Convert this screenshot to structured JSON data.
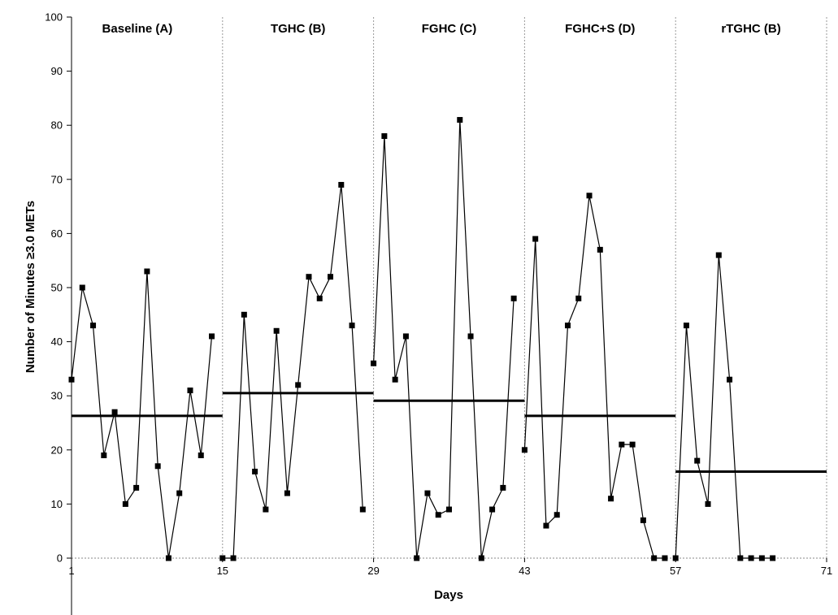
{
  "chart_data": {
    "type": "line",
    "xlabel": "Days",
    "ylabel": "Number of Minutes ≥3.0 METs",
    "xlim": [
      1,
      71
    ],
    "ylim": [
      0,
      100
    ],
    "x_ticks": [
      1,
      15,
      29,
      43,
      57,
      71
    ],
    "y_ticks": [
      0,
      10,
      20,
      30,
      40,
      50,
      60,
      70,
      80,
      90,
      100
    ],
    "phase_dividers": [
      15,
      29,
      43,
      57
    ],
    "phases": [
      {
        "label": "Baseline (A)",
        "x_range": [
          1,
          15
        ],
        "mean": 26.3,
        "points": [
          [
            1,
            33
          ],
          [
            2,
            50
          ],
          [
            3,
            43
          ],
          [
            4,
            19
          ],
          [
            5,
            27
          ],
          [
            6,
            10
          ],
          [
            7,
            13
          ],
          [
            8,
            53
          ],
          [
            9,
            17
          ],
          [
            10,
            0
          ],
          [
            11,
            12
          ],
          [
            12,
            31
          ],
          [
            13,
            19
          ],
          [
            14,
            41
          ]
        ]
      },
      {
        "label": "TGHC (B)",
        "x_range": [
          15,
          29
        ],
        "mean": 30.5,
        "points": [
          [
            15,
            0
          ],
          [
            16,
            0
          ],
          [
            17,
            45
          ],
          [
            18,
            16
          ],
          [
            19,
            9
          ],
          [
            20,
            42
          ],
          [
            21,
            12
          ],
          [
            22,
            32
          ],
          [
            23,
            52
          ],
          [
            24,
            48
          ],
          [
            25,
            52
          ],
          [
            26,
            69
          ],
          [
            27,
            43
          ],
          [
            28,
            9
          ]
        ]
      },
      {
        "label": "FGHC (C)",
        "x_range": [
          29,
          43
        ],
        "mean": 29.1,
        "points": [
          [
            29,
            36
          ],
          [
            30,
            78
          ],
          [
            31,
            33
          ],
          [
            32,
            41
          ],
          [
            33,
            0
          ],
          [
            34,
            12
          ],
          [
            35,
            8
          ],
          [
            36,
            9
          ],
          [
            37,
            81
          ],
          [
            38,
            41
          ],
          [
            39,
            0
          ],
          [
            40,
            9
          ],
          [
            41,
            13
          ],
          [
            42,
            48
          ]
        ]
      },
      {
        "label": "FGHC+S (D)",
        "x_range": [
          43,
          57
        ],
        "mean": 26.3,
        "points": [
          [
            43,
            20
          ],
          [
            44,
            59
          ],
          [
            45,
            6
          ],
          [
            46,
            8
          ],
          [
            47,
            43
          ],
          [
            48,
            48
          ],
          [
            49,
            67
          ],
          [
            50,
            57
          ],
          [
            51,
            11
          ],
          [
            52,
            21
          ],
          [
            53,
            21
          ],
          [
            54,
            7
          ],
          [
            55,
            0
          ],
          [
            56,
            0
          ]
        ]
      },
      {
        "label": "rTGHC (B)",
        "x_range": [
          57,
          71
        ],
        "mean": 16,
        "points": [
          [
            57,
            0
          ],
          [
            58,
            43
          ],
          [
            59,
            18
          ],
          [
            60,
            10
          ],
          [
            61,
            56
          ],
          [
            62,
            33
          ],
          [
            63,
            0
          ],
          [
            64,
            0
          ],
          [
            65,
            0
          ],
          [
            66,
            0
          ]
        ]
      }
    ]
  }
}
